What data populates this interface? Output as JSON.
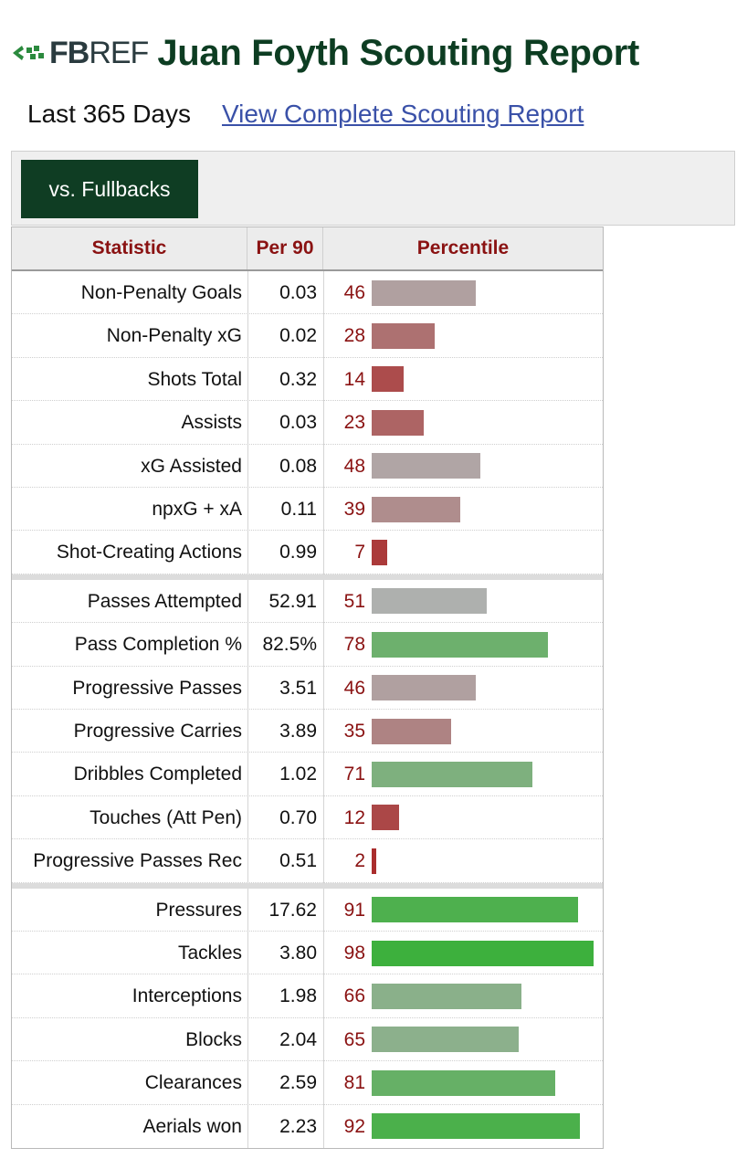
{
  "header": {
    "logo_bold": "FB",
    "logo_light": "REF",
    "title": "Juan Foyth Scouting Report"
  },
  "subheader": {
    "period": "Last 365 Days",
    "link": "View Complete Scouting Report"
  },
  "tabs": [
    {
      "label": "vs. Fullbacks"
    }
  ],
  "table": {
    "columns": [
      "Statistic",
      "Per 90",
      "Percentile"
    ],
    "groups": [
      [
        {
          "stat": "Non-Penalty Goals",
          "per90": "0.03",
          "pct": 46
        },
        {
          "stat": "Non-Penalty xG",
          "per90": "0.02",
          "pct": 28
        },
        {
          "stat": "Shots Total",
          "per90": "0.32",
          "pct": 14
        },
        {
          "stat": "Assists",
          "per90": "0.03",
          "pct": 23
        },
        {
          "stat": "xG Assisted",
          "per90": "0.08",
          "pct": 48
        },
        {
          "stat": "npxG + xA",
          "per90": "0.11",
          "pct": 39
        },
        {
          "stat": "Shot-Creating Actions",
          "per90": "0.99",
          "pct": 7
        }
      ],
      [
        {
          "stat": "Passes Attempted",
          "per90": "52.91",
          "pct": 51
        },
        {
          "stat": "Pass Completion %",
          "per90": "82.5%",
          "pct": 78
        },
        {
          "stat": "Progressive Passes",
          "per90": "3.51",
          "pct": 46
        },
        {
          "stat": "Progressive Carries",
          "per90": "3.89",
          "pct": 35
        },
        {
          "stat": "Dribbles Completed",
          "per90": "1.02",
          "pct": 71
        },
        {
          "stat": "Touches (Att Pen)",
          "per90": "0.70",
          "pct": 12
        },
        {
          "stat": "Progressive Passes Rec",
          "per90": "0.51",
          "pct": 2
        }
      ],
      [
        {
          "stat": "Pressures",
          "per90": "17.62",
          "pct": 91
        },
        {
          "stat": "Tackles",
          "per90": "3.80",
          "pct": 98
        },
        {
          "stat": "Interceptions",
          "per90": "1.98",
          "pct": 66
        },
        {
          "stat": "Blocks",
          "per90": "2.04",
          "pct": 65
        },
        {
          "stat": "Clearances",
          "per90": "2.59",
          "pct": 81
        },
        {
          "stat": "Aerials won",
          "per90": "2.23",
          "pct": 92
        }
      ]
    ]
  }
}
